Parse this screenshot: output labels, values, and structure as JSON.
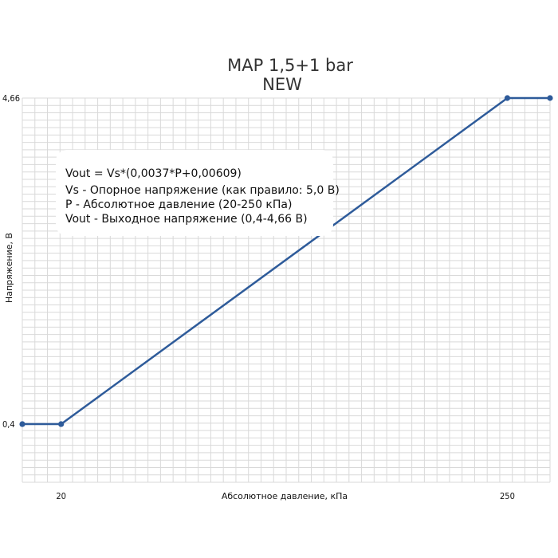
{
  "chart_data": {
    "type": "line",
    "title": [
      "MAP 1,5+1 bar",
      "NEW"
    ],
    "xlabel": "Абсолютное давление, кПа",
    "ylabel": "Напряжение, В",
    "x_ticks": [
      20,
      250
    ],
    "y_ticks": [
      0.4,
      4.66
    ],
    "x_tick_labels": [
      "20",
      "250"
    ],
    "y_tick_labels": [
      "0,4",
      "4,66"
    ],
    "xlim": [
      0,
      272
    ],
    "ylim": [
      -0.36,
      4.66
    ],
    "grid": true,
    "series": [
      {
        "x": [
          0,
          20,
          250,
          272
        ],
        "y": [
          0.4,
          0.4,
          4.66,
          4.66
        ],
        "markers": [
          0,
          20,
          250,
          272
        ]
      }
    ],
    "annotation": [
      "Vout = Vs*(0,0037*P+0,00609)",
      "Vs - Опорное напряжение (как правило: 5,0 В)",
      "P - Абсолютное давление (20-250 кПа)",
      "Vout - Выходное напряжение (0,4-4,66 В)"
    ],
    "colors": {
      "line": "#2e5b9a",
      "grid": "#d9d9d9"
    }
  }
}
